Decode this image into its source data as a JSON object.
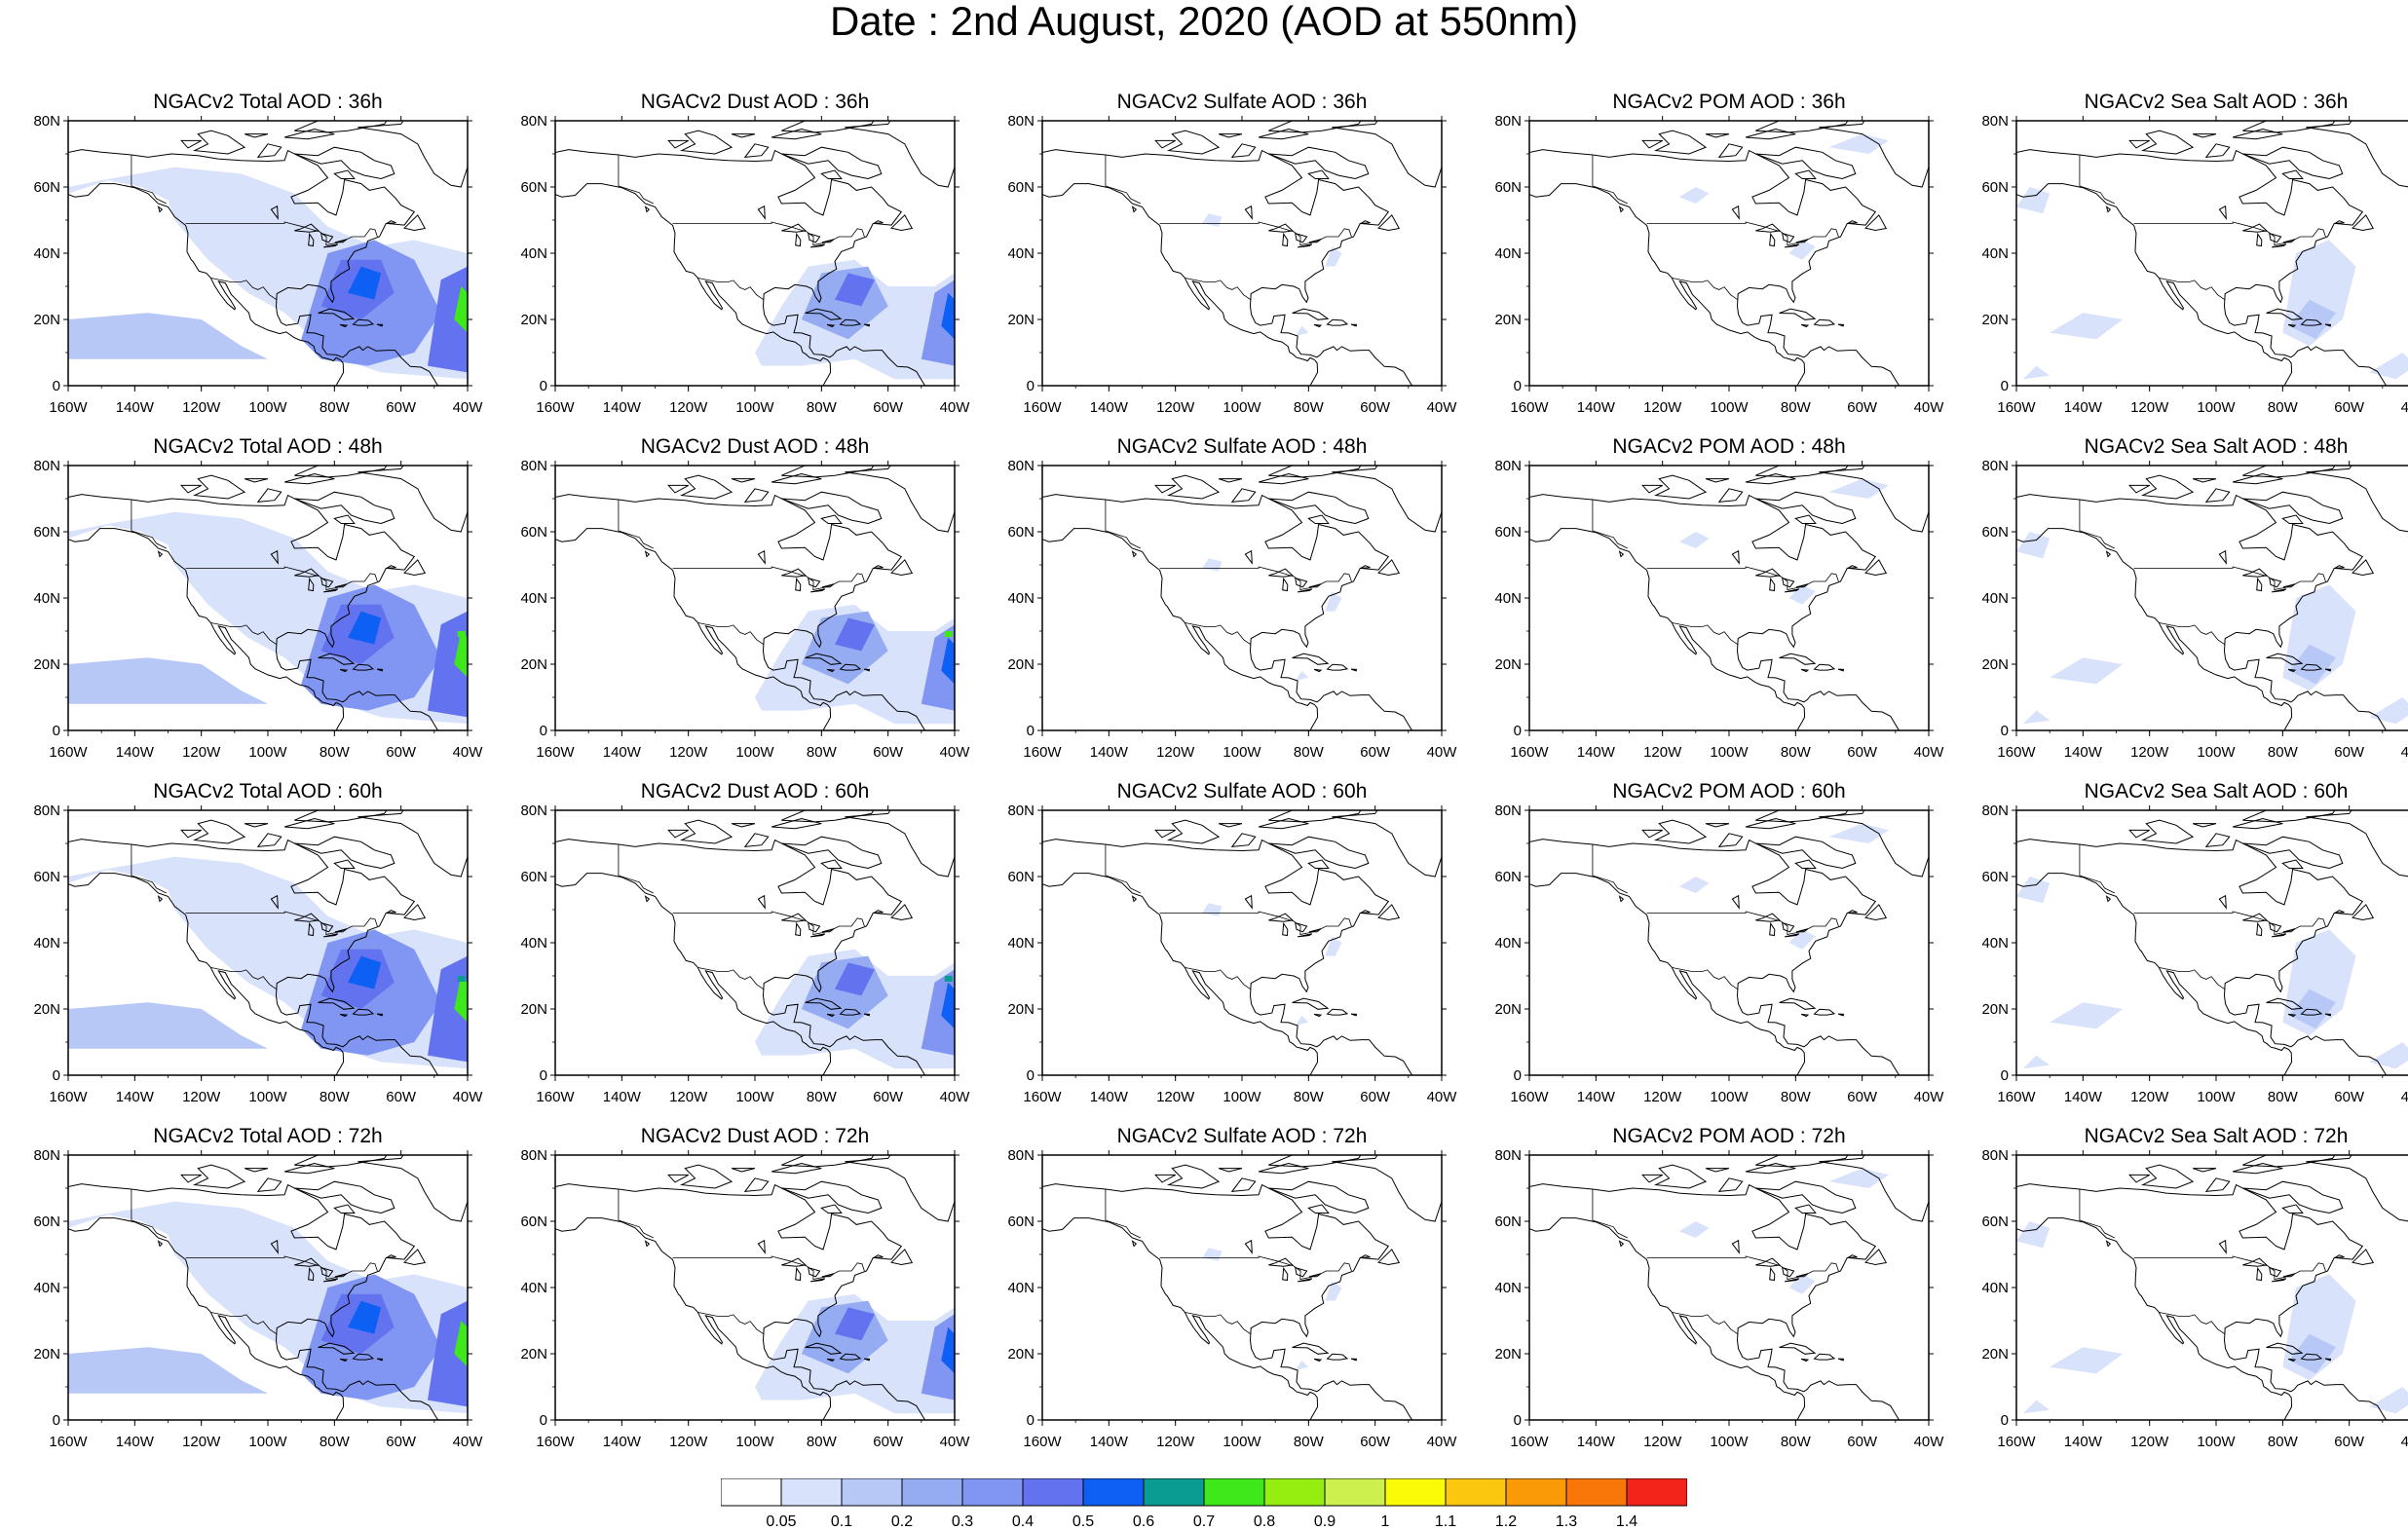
{
  "title": "Date : 2nd August, 2020 (AOD at 550nm)",
  "chart_data": {
    "type": "map-grid",
    "projection": "cylindrical-equidistant",
    "lon_range": [
      -160,
      -40
    ],
    "lat_range": [
      0,
      80
    ],
    "lon_ticks": [
      "160W",
      "140W",
      "120W",
      "100W",
      "80W",
      "60W",
      "40W"
    ],
    "lat_ticks": [
      "0",
      "20N",
      "40N",
      "60N",
      "80N"
    ],
    "lon_tick_values": [
      -160,
      -140,
      -120,
      -100,
      -80,
      -60,
      -40
    ],
    "lat_tick_values": [
      0,
      20,
      40,
      60,
      80
    ],
    "variable": "AOD at 550nm",
    "panels": [
      {
        "title": "NGACv2 Total AOD : 36h",
        "kind": "total"
      },
      {
        "title": "NGACv2 Dust AOD : 36h",
        "kind": "dust"
      },
      {
        "title": "NGACv2 Sulfate AOD : 36h",
        "kind": "sulfate"
      },
      {
        "title": "NGACv2 POM AOD : 36h",
        "kind": "pom"
      },
      {
        "title": "NGACv2 Sea Salt AOD : 36h",
        "kind": "seasalt"
      },
      {
        "title": "NGACv2 Total AOD : 48h",
        "kind": "total"
      },
      {
        "title": "NGACv2 Dust AOD : 48h",
        "kind": "dust"
      },
      {
        "title": "NGACv2 Sulfate AOD : 48h",
        "kind": "sulfate"
      },
      {
        "title": "NGACv2 POM AOD : 48h",
        "kind": "pom"
      },
      {
        "title": "NGACv2 Sea Salt AOD : 48h",
        "kind": "seasalt"
      },
      {
        "title": "NGACv2 Total AOD : 60h",
        "kind": "total"
      },
      {
        "title": "NGACv2 Dust AOD : 60h",
        "kind": "dust"
      },
      {
        "title": "NGACv2 Sulfate AOD : 60h",
        "kind": "sulfate"
      },
      {
        "title": "NGACv2 POM AOD : 60h",
        "kind": "pom"
      },
      {
        "title": "NGACv2 Sea Salt AOD : 60h",
        "kind": "seasalt"
      },
      {
        "title": "NGACv2 Total AOD : 72h",
        "kind": "total"
      },
      {
        "title": "NGACv2 Dust AOD : 72h",
        "kind": "dust"
      },
      {
        "title": "NGACv2 Sulfate AOD : 72h",
        "kind": "sulfate"
      },
      {
        "title": "NGACv2 POM AOD : 72h",
        "kind": "pom"
      },
      {
        "title": "NGACv2 Sea Salt  AOD : 72h",
        "kind": "seasalt"
      }
    ],
    "colorbar": {
      "labels": [
        "0.05",
        "0.1",
        "0.2",
        "0.3",
        "0.4",
        "0.5",
        "0.6",
        "0.7",
        "0.8",
        "0.9",
        "1",
        "1.1",
        "1.2",
        "1.3",
        "1.4"
      ],
      "colors": [
        "#ffffff",
        "#d9e2fb",
        "#b7c8f6",
        "#95acf3",
        "#8096f2",
        "#6373ef",
        "#0e5ff4",
        "#0a9c93",
        "#3ee81b",
        "#96ee10",
        "#cdf04e",
        "#fcfb07",
        "#fbc70f",
        "#fa9a06",
        "#f87708",
        "#f3241a"
      ]
    }
  }
}
